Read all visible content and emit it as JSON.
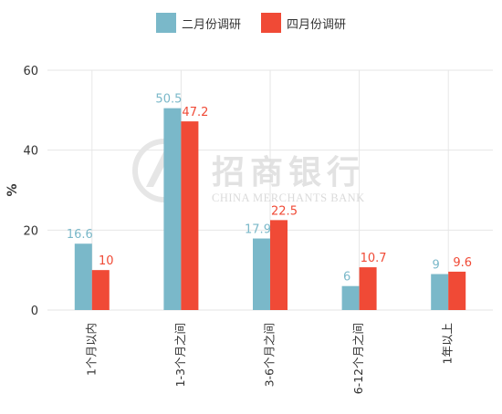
{
  "legend": {
    "series1": "二月份调研",
    "series2": "四月份调研"
  },
  "watermark": {
    "title": "招商银行",
    "subtitle": "CHINA MERCHANTS BANK"
  },
  "colors": {
    "series1": "#7ab8c9",
    "series2": "#f04a36",
    "grid": "#e6e6e6",
    "tick": "#333333"
  },
  "chart_data": {
    "type": "bar",
    "title": "",
    "xlabel": "",
    "ylabel": "%",
    "ylim": [
      0,
      60
    ],
    "yticks": [
      0,
      20,
      40,
      60
    ],
    "grid": true,
    "legend_position": "top",
    "categories": [
      "1个月以内",
      "1-3个月之间",
      "3-6个月之间",
      "6-12个月之间",
      "1年以上"
    ],
    "series": [
      {
        "name": "二月份调研",
        "values": [
          16.6,
          50.5,
          17.9,
          6,
          9
        ]
      },
      {
        "name": "四月份调研",
        "values": [
          10,
          47.2,
          22.5,
          10.7,
          9.6
        ]
      }
    ]
  }
}
